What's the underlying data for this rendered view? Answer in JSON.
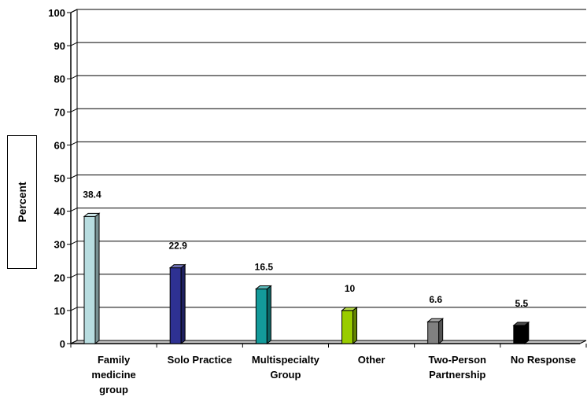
{
  "chart_data": {
    "type": "bar",
    "ylabel": "Percent",
    "xlabel": "",
    "ylim": [
      0,
      100
    ],
    "yticks": [
      0,
      10,
      20,
      30,
      40,
      50,
      60,
      70,
      80,
      90,
      100
    ],
    "grid": true,
    "categories": [
      [
        "Family",
        "medicine",
        "group"
      ],
      [
        "Solo Practice"
      ],
      [
        "Multispecialty",
        "Group"
      ],
      [
        "Other"
      ],
      [
        "Two-Person",
        "Partnership"
      ],
      [
        "No Response"
      ]
    ],
    "values": [
      38.4,
      22.9,
      16.5,
      10,
      6.6,
      5.5
    ],
    "value_labels": [
      "38.4",
      "22.9",
      "16.5",
      "10",
      "6.6",
      "5.5"
    ],
    "colors": [
      "#b8dde0",
      "#2e3192",
      "#139a9a",
      "#99cc00",
      "#808080",
      "#000000"
    ]
  }
}
